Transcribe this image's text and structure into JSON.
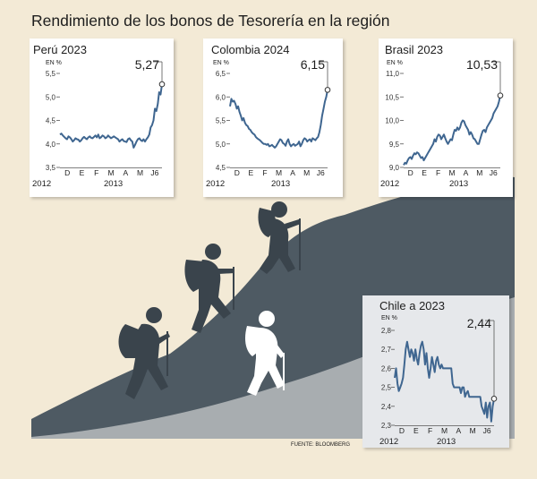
{
  "title": "Rendimiento de los bonos de Tesorería en la región",
  "source": "FUENTE: BLOOMBERG",
  "chart_data": [
    {
      "type": "line",
      "title": "Perú 2023",
      "unit": "EN %",
      "ylim": [
        3.5,
        5.5
      ],
      "ytick_labels": [
        "3,5",
        "4,0",
        "4,5",
        "5,0",
        "5,5"
      ],
      "last_value_label": "5,27",
      "last_value": 5.27,
      "month_labels": [
        "D",
        "E",
        "F",
        "M",
        "A",
        "M",
        "J6"
      ],
      "year_labels": [
        "2012",
        "2013"
      ],
      "y": [
        4.2,
        4.22,
        4.18,
        4.15,
        4.12,
        4.1,
        4.16,
        4.14,
        4.1,
        4.05,
        4.08,
        4.12,
        4.1,
        4.09,
        4.05,
        4.08,
        4.12,
        4.15,
        4.12,
        4.1,
        4.14,
        4.16,
        4.13,
        4.12,
        4.15,
        4.18,
        4.14,
        4.2,
        4.12,
        4.14,
        4.18,
        4.16,
        4.12,
        4.14,
        4.18,
        4.15,
        4.12,
        4.14,
        4.16,
        4.14,
        4.12,
        4.1,
        4.05,
        4.08,
        4.1,
        4.06,
        4.05,
        4.04,
        4.1,
        4.12,
        4.08,
        4.05,
        3.92,
        3.98,
        4.05,
        4.1,
        4.12,
        4.08,
        4.06,
        4.1,
        4.05,
        4.1,
        4.14,
        4.2,
        4.35,
        4.4,
        4.5,
        4.75,
        4.7,
        4.85,
        5.1,
        5.05,
        5.27
      ]
    },
    {
      "type": "line",
      "title": "Colombia 2024",
      "unit": "EN %",
      "ylim": [
        4.5,
        6.5
      ],
      "ytick_labels": [
        "4,5",
        "5,0",
        "5,5",
        "6,0",
        "6,5"
      ],
      "last_value_label": "6,15",
      "last_value": 6.15,
      "month_labels": [
        "D",
        "E",
        "F",
        "M",
        "A",
        "M",
        "J6"
      ],
      "year_labels": [
        "2012",
        "2013"
      ],
      "y": [
        5.8,
        5.96,
        5.9,
        5.92,
        5.85,
        5.75,
        5.8,
        5.68,
        5.6,
        5.5,
        5.55,
        5.45,
        5.4,
        5.38,
        5.32,
        5.3,
        5.25,
        5.22,
        5.2,
        5.15,
        5.12,
        5.1,
        5.08,
        5.05,
        5.02,
        5.0,
        5.0,
        4.98,
        5.0,
        4.95,
        4.96,
        4.98,
        4.95,
        4.92,
        4.95,
        5.0,
        5.05,
        5.1,
        5.08,
        5.02,
        5.0,
        4.96,
        5.05,
        5.1,
        5.0,
        4.95,
        4.98,
        5.0,
        4.96,
        4.98,
        5.0,
        5.05,
        4.95,
        5.0,
        5.08,
        5.12,
        5.1,
        5.05,
        5.08,
        5.1,
        5.05,
        5.12,
        5.1,
        5.08,
        5.12,
        5.15,
        5.25,
        5.4,
        5.6,
        5.75,
        5.9,
        6.0,
        6.15
      ]
    },
    {
      "type": "line",
      "title": "Brasil 2023",
      "unit": "EN %",
      "ylim": [
        9.0,
        11.0
      ],
      "ytick_labels": [
        "9,0",
        "9,5",
        "10,0",
        "10,5",
        "11,0"
      ],
      "last_value_label": "10,53",
      "last_value": 10.53,
      "month_labels": [
        "D",
        "E",
        "F",
        "M",
        "A",
        "M",
        "J6"
      ],
      "year_labels": [
        "2012",
        "2013"
      ],
      "y": [
        9.05,
        9.1,
        9.08,
        9.15,
        9.2,
        9.22,
        9.18,
        9.25,
        9.3,
        9.28,
        9.32,
        9.3,
        9.25,
        9.2,
        9.22,
        9.15,
        9.2,
        9.25,
        9.3,
        9.35,
        9.4,
        9.45,
        9.5,
        9.6,
        9.55,
        9.65,
        9.7,
        9.68,
        9.6,
        9.65,
        9.7,
        9.62,
        9.55,
        9.5,
        9.55,
        9.6,
        9.58,
        9.7,
        9.8,
        9.78,
        9.85,
        9.8,
        9.85,
        9.95,
        10.0,
        9.98,
        9.9,
        9.85,
        9.8,
        9.7,
        9.75,
        9.7,
        9.62,
        9.6,
        9.55,
        9.5,
        9.5,
        9.6,
        9.7,
        9.78,
        9.8,
        9.75,
        9.85,
        9.9,
        9.95,
        10.0,
        10.05,
        10.15,
        10.2,
        10.25,
        10.3,
        10.4,
        10.53
      ]
    },
    {
      "type": "line",
      "title": "Chile a 2023",
      "unit": "EN %",
      "ylim": [
        2.3,
        2.8
      ],
      "ytick_labels": [
        "2,3",
        "2,4",
        "2,5",
        "2,6",
        "2,7",
        "2,8"
      ],
      "last_value_label": "2,44",
      "last_value": 2.44,
      "month_labels": [
        "D",
        "E",
        "F",
        "M",
        "A",
        "M",
        "J6"
      ],
      "year_labels": [
        "2012",
        "2013"
      ],
      "y": [
        2.55,
        2.6,
        2.52,
        2.48,
        2.5,
        2.52,
        2.55,
        2.62,
        2.7,
        2.74,
        2.7,
        2.66,
        2.7,
        2.68,
        2.64,
        2.7,
        2.65,
        2.62,
        2.68,
        2.72,
        2.74,
        2.7,
        2.62,
        2.68,
        2.6,
        2.55,
        2.6,
        2.66,
        2.62,
        2.58,
        2.64,
        2.66,
        2.62,
        2.6,
        2.62,
        2.6,
        2.6,
        2.6,
        2.6,
        2.6,
        2.6,
        2.6,
        2.52,
        2.5,
        2.5,
        2.5,
        2.5,
        2.5,
        2.47,
        2.5,
        2.5,
        2.45,
        2.47,
        2.48,
        2.45,
        2.45,
        2.45,
        2.45,
        2.45,
        2.45,
        2.45,
        2.45,
        2.45,
        2.4,
        2.38,
        2.36,
        2.42,
        2.34,
        2.4,
        2.42,
        2.32,
        2.4,
        2.44
      ]
    }
  ]
}
